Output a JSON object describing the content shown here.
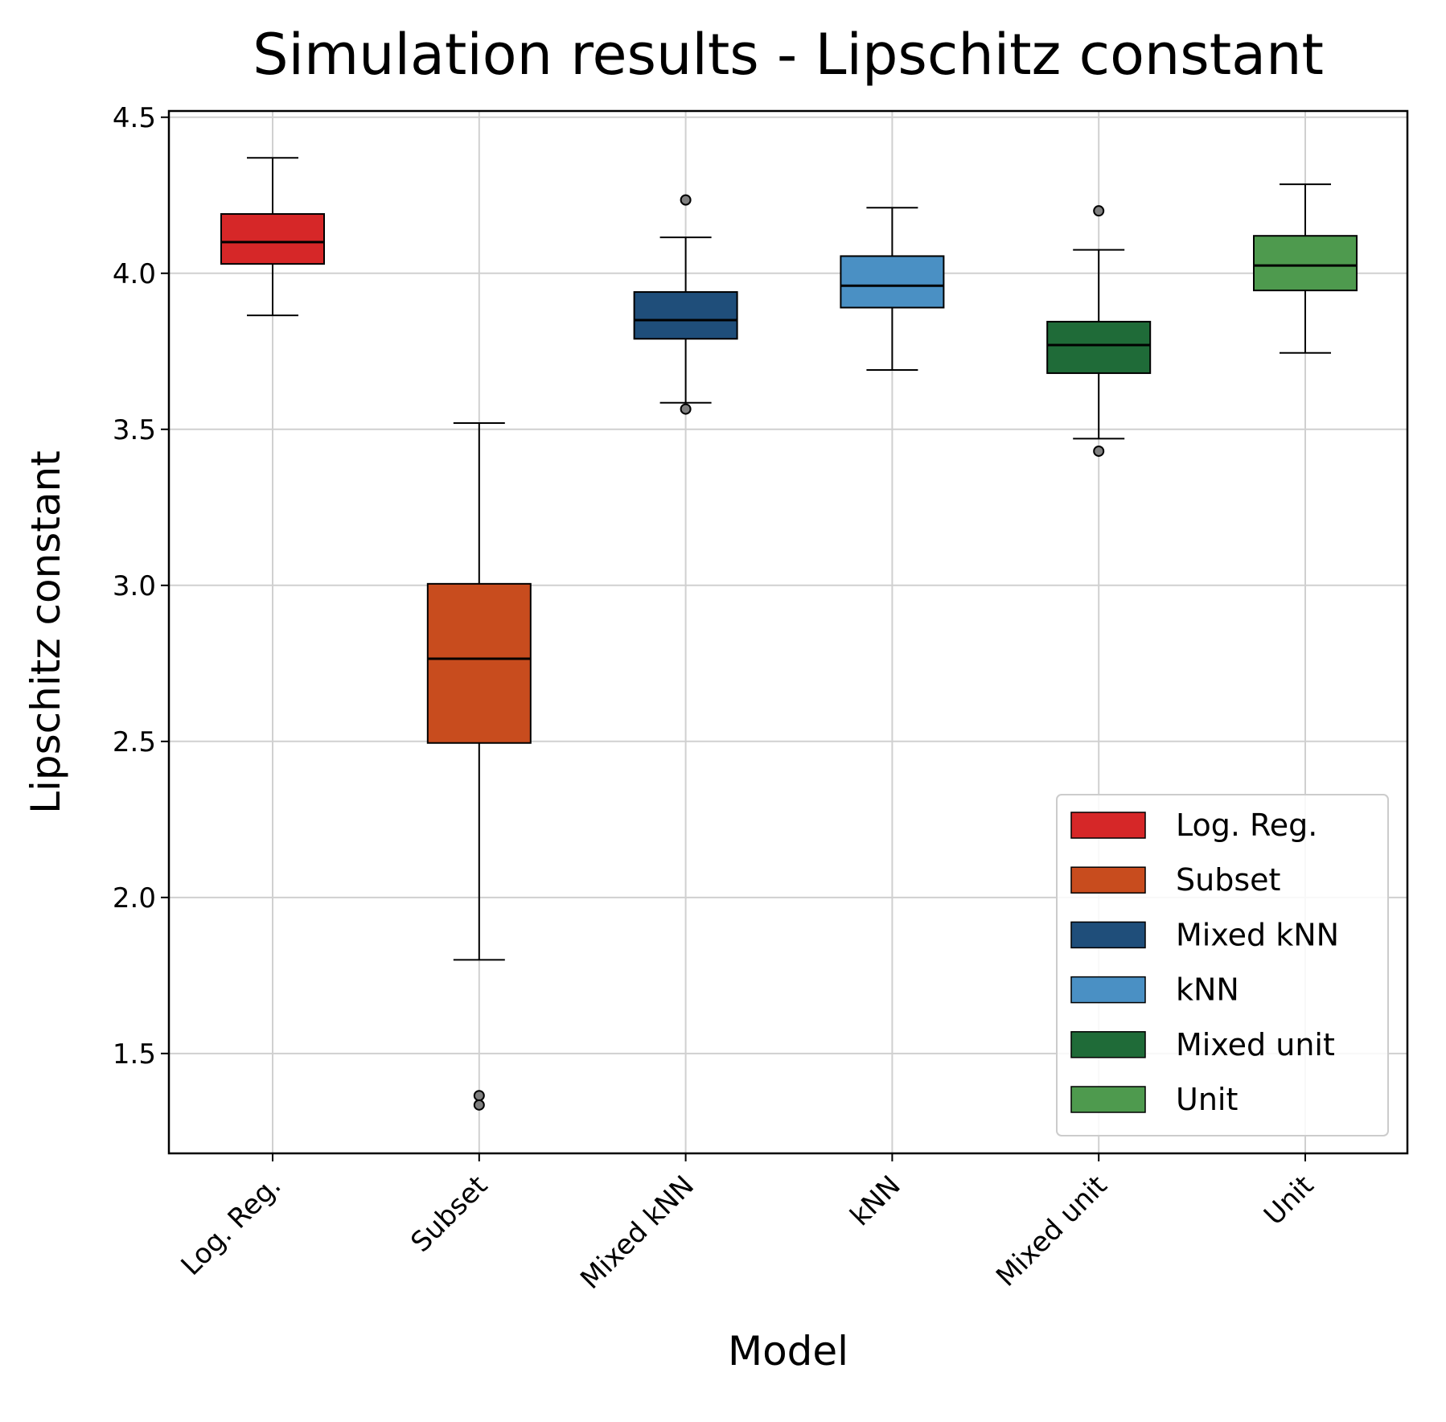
{
  "chart_data": {
    "type": "box",
    "title": "Simulation results - Lipschitz constant",
    "xlabel": "Model",
    "ylabel": "Lipschitz constant",
    "ylim": [
      1.18,
      4.52
    ],
    "yticks": [
      "1.5",
      "2.0",
      "2.5",
      "3.0",
      "3.5",
      "4.0",
      "4.5"
    ],
    "grid": true,
    "legend_position": "lower-right",
    "categories": [
      "Log. Reg.",
      "Subset",
      "Mixed kNN",
      "kNN",
      "Mixed unit",
      "Unit"
    ],
    "series": [
      {
        "name": "Log. Reg.",
        "color": "#d62728",
        "whisker_low": 3.865,
        "q1": 4.03,
        "median": 4.1,
        "q3": 4.19,
        "whisker_high": 4.37,
        "outliers": []
      },
      {
        "name": "Subset",
        "color": "#c84c1e",
        "whisker_low": 1.8,
        "q1": 2.495,
        "median": 2.765,
        "q3": 3.005,
        "whisker_high": 3.52,
        "outliers": [
          1.365,
          1.335
        ]
      },
      {
        "name": "Mixed kNN",
        "color": "#1f4e7a",
        "whisker_low": 3.585,
        "q1": 3.79,
        "median": 3.85,
        "q3": 3.94,
        "whisker_high": 4.115,
        "outliers": [
          4.235,
          3.565
        ]
      },
      {
        "name": "kNN",
        "color": "#4a90c4",
        "whisker_low": 3.69,
        "q1": 3.89,
        "median": 3.96,
        "q3": 4.055,
        "whisker_high": 4.21,
        "outliers": []
      },
      {
        "name": "Mixed unit",
        "color": "#1f6b38",
        "whisker_low": 3.47,
        "q1": 3.68,
        "median": 3.77,
        "q3": 3.845,
        "whisker_high": 4.075,
        "outliers": [
          4.2,
          3.43
        ]
      },
      {
        "name": "Unit",
        "color": "#4e9a4e",
        "whisker_low": 3.745,
        "q1": 3.945,
        "median": 4.025,
        "q3": 4.12,
        "whisker_high": 4.285,
        "outliers": []
      }
    ]
  }
}
